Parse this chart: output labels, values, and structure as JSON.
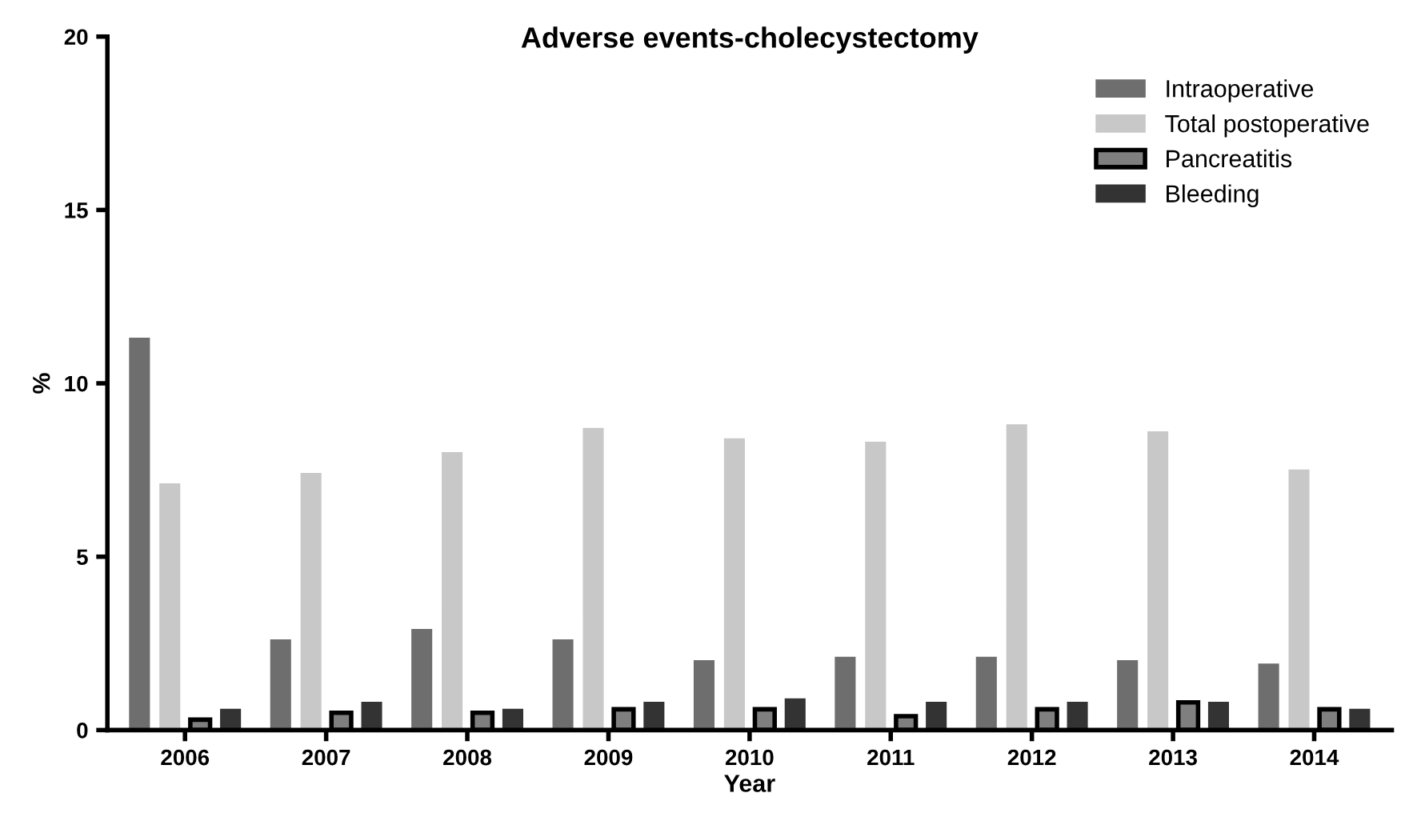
{
  "chart_data": {
    "type": "bar",
    "title": "Adverse events-cholecystectomy",
    "xlabel": "Year",
    "ylabel": "%",
    "categories": [
      "2006",
      "2007",
      "2008",
      "2009",
      "2010",
      "2011",
      "2012",
      "2013",
      "2014"
    ],
    "series": [
      {
        "name": "Intraoperative",
        "color": "#6e6e6e",
        "values": [
          11.3,
          2.6,
          2.9,
          2.6,
          2.0,
          2.1,
          2.1,
          2.0,
          1.9
        ]
      },
      {
        "name": "Total postoperative",
        "color": "#c8c8c8",
        "values": [
          7.1,
          7.4,
          8.0,
          8.7,
          8.4,
          8.3,
          8.8,
          8.6,
          7.5
        ]
      },
      {
        "name": "Pancreatitis",
        "color": "#7f7f7f",
        "values": [
          0.3,
          0.5,
          0.5,
          0.6,
          0.6,
          0.4,
          0.6,
          0.8,
          0.6
        ]
      },
      {
        "name": "Bleeding",
        "color": "#333333",
        "values": [
          0.6,
          0.8,
          0.6,
          0.8,
          0.9,
          0.8,
          0.8,
          0.8,
          0.6
        ]
      }
    ],
    "ylim": [
      0,
      20
    ],
    "yticks": [
      0,
      5,
      10,
      15,
      20
    ],
    "grid": false,
    "legend": "top right"
  }
}
